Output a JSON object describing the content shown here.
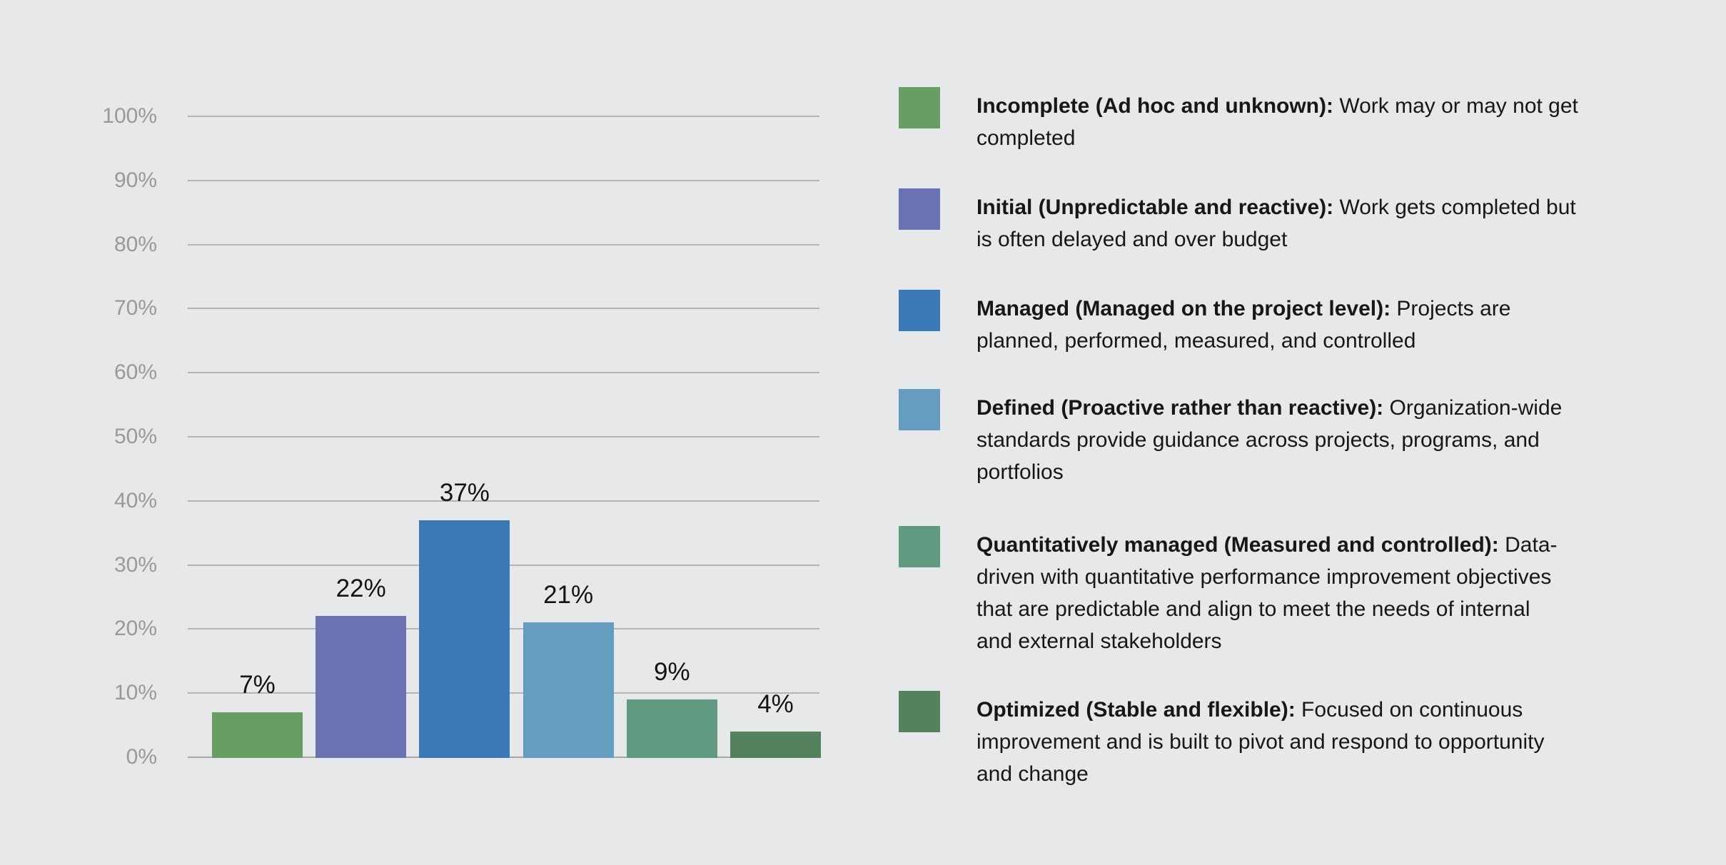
{
  "chart_data": {
    "type": "bar",
    "title": "",
    "xlabel": "",
    "ylabel": "",
    "categories": [
      "Incomplete",
      "Initial",
      "Managed",
      "Defined",
      "Quantitatively managed",
      "Optimized"
    ],
    "values": [
      7,
      22,
      37,
      21,
      9,
      4
    ],
    "value_labels": [
      "7%",
      "22%",
      "37%",
      "21%",
      "9%",
      "4%"
    ],
    "bar_colors": [
      "#689e63",
      "#6b72b4",
      "#3a78b6",
      "#649dbf",
      "#5f9a81",
      "#54825c"
    ],
    "y_ticks": [
      "0%",
      "10%",
      "20%",
      "30%",
      "40%",
      "50%",
      "60%",
      "70%",
      "80%",
      "90%",
      "100%"
    ],
    "ylim": [
      0,
      100
    ],
    "grid": true,
    "legend_position": "right"
  },
  "legend": {
    "items": [
      {
        "color": "#689e63",
        "title": "Incomplete (Ad hoc and unknown):",
        "desc": " Work may or may not get\ncompleted"
      },
      {
        "color": "#6b72b4",
        "title": "Initial (Unpredictable and reactive):",
        "desc": " Work gets completed but\nis often delayed and over budget"
      },
      {
        "color": "#3a78b6",
        "title": "Managed (Managed on the project level):",
        "desc": " Projects are\nplanned, performed, measured, and controlled"
      },
      {
        "color": "#649dbf",
        "title": "Defined (Proactive rather than reactive):",
        "desc": " Organization-wide\nstandards provide guidance across projects, programs, and\nportfolios"
      },
      {
        "color": "#5f9a81",
        "title": "Quantitatively managed (Measured and controlled):",
        "desc": " Data-\ndriven with quantitative performance improvement objectives\nthat are predictable and align to meet the needs of internal\nand external stakeholders"
      },
      {
        "color": "#54825c",
        "title": "Optimized (Stable and flexible):",
        "desc": " Focused on continuous\nimprovement and is built to pivot and respond to opportunity\nand change"
      }
    ]
  },
  "colors": {
    "background": "#e7e8ea",
    "gridline": "#b3b4b6",
    "baseline": "#a6a7a9",
    "tick_label": "#98999b",
    "value_label": "#121314",
    "legend_text": "#161718"
  }
}
